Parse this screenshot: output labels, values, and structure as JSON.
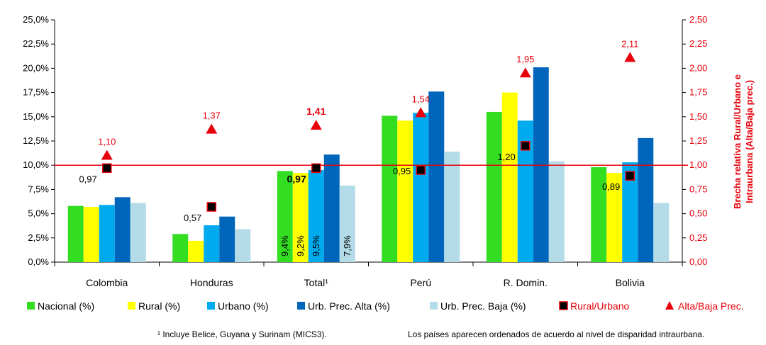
{
  "chart_data": {
    "type": "bar",
    "categories": [
      "Colombia",
      "Honduras",
      "Total¹",
      "Perú",
      "R. Domin.",
      "Bolivia"
    ],
    "series": [
      {
        "name": "Nacional (%)",
        "color": "#33dd22",
        "values": [
          5.8,
          2.9,
          9.4,
          15.1,
          15.5,
          9.8
        ]
      },
      {
        "name": "Rural (%)",
        "color": "#ffff00",
        "values": [
          5.7,
          2.2,
          9.2,
          14.6,
          17.5,
          9.2
        ]
      },
      {
        "name": "Urbano (%)",
        "color": "#00aaee",
        "values": [
          5.9,
          3.8,
          9.5,
          15.4,
          14.6,
          10.3
        ]
      },
      {
        "name": "Urb. Prec. Alta (%)",
        "color": "#0066bb",
        "values": [
          6.7,
          4.7,
          11.1,
          17.6,
          20.1,
          12.8
        ]
      },
      {
        "name": "Urb. Prec. Baja (%)",
        "color": "#b3dbe8",
        "values": [
          6.1,
          3.4,
          7.9,
          11.4,
          10.4,
          6.1
        ]
      }
    ],
    "secondary_series": [
      {
        "name": "Rural/Urbano",
        "marker": "square",
        "color": "#e8000b",
        "values": [
          0.97,
          0.57,
          0.97,
          0.95,
          1.2,
          0.89
        ],
        "labels": [
          "0,97",
          "0,57",
          "0,97",
          "0,95",
          "1,20",
          "0,89"
        ]
      },
      {
        "name": "Alta/Baja Prec.",
        "marker": "triangle",
        "color": "#e8000b",
        "values": [
          1.1,
          1.37,
          1.41,
          1.54,
          1.95,
          2.11
        ],
        "labels": [
          "1,10",
          "1,37",
          "1,41",
          "1,54",
          "1,95",
          "2,11"
        ]
      }
    ],
    "total_bar_labels": [
      "9,4%",
      "9,2%",
      "9,5%",
      "7,9%"
    ],
    "ylim": [
      0,
      25
    ],
    "y2lim": [
      0,
      2.5
    ],
    "yticks": [
      "0,0%",
      "2,5%",
      "5,0%",
      "7,5%",
      "10,0%",
      "12,5%",
      "15,0%",
      "17,5%",
      "20,0%",
      "22,5%",
      "25,0%"
    ],
    "y2ticks": [
      "0,00",
      "0,25",
      "0,50",
      "0,75",
      "1,00",
      "1,25",
      "1,50",
      "1,75",
      "2,00",
      "2,25",
      "2,50"
    ],
    "y2label_lines": [
      "Brecha relativa Rural/Urbano e",
      "Intraurbana (Alta/Baja prec.)"
    ],
    "reference_line": 1.0,
    "legend_position": "bottom"
  },
  "footnotes": {
    "left": "¹ Incluye Belice, Guyana y Surinam (MICS3).",
    "right": "Los países aparecen ordenados de acuerdo al nivel de disparidad intraurbana."
  }
}
